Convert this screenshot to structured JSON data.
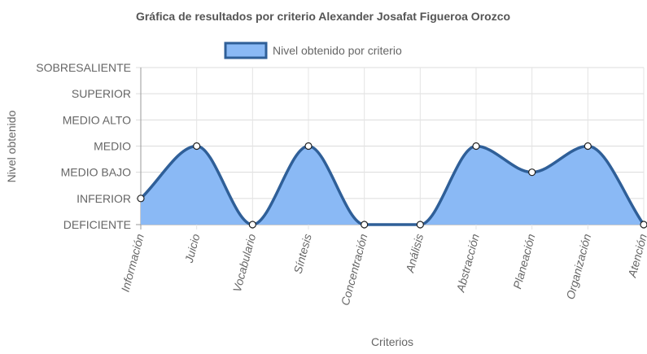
{
  "chart_data": {
    "type": "area",
    "title": "Gráfica de resultados por criterio Alexander Josafat Figueroa Orozco",
    "xlabel": "Criterios",
    "ylabel": "Nivel obtenido",
    "categories": [
      "Información",
      "Juicio",
      "Vocabulario",
      "Síntesis",
      "Concentración",
      "Análisis",
      "Abstracción",
      "Planeación",
      "Organización",
      "Atención"
    ],
    "y_levels": [
      "DEFICIENTE",
      "INFERIOR",
      "MEDIO BAJO",
      "MEDIO",
      "MEDIO ALTO",
      "SUPERIOR",
      "SOBRESALIENTE"
    ],
    "ylim": [
      0,
      6
    ],
    "series": [
      {
        "name": "Nivel obtenido por criterio",
        "values": [
          1,
          3,
          0,
          3,
          0,
          0,
          3,
          2,
          3,
          0
        ],
        "fill_color": "#8ab9f5",
        "line_color": "#2f5f98"
      }
    ],
    "grid": true,
    "legend_position": "top-center"
  }
}
